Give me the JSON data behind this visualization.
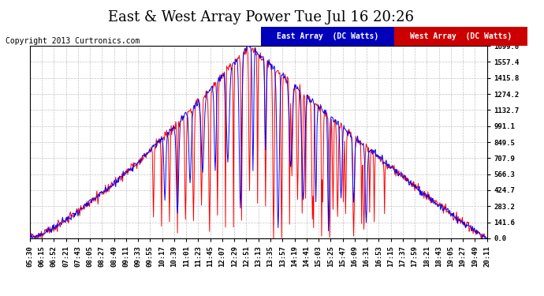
{
  "title": "East & West Array Power Tue Jul 16 20:26",
  "copyright": "Copyright 2013 Curtronics.com",
  "legend_east": "East Array  (DC Watts)",
  "legend_west": "West Array  (DC Watts)",
  "east_color": "#0000ff",
  "west_color": "#ff0000",
  "legend_east_bg": "#0000bb",
  "legend_west_bg": "#cc0000",
  "bg_color": "#ffffff",
  "plot_bg_color": "#ffffff",
  "grid_color": "#aaaaaa",
  "yticks": [
    0.0,
    141.6,
    283.2,
    424.7,
    566.3,
    707.9,
    849.5,
    991.1,
    1132.7,
    1274.2,
    1415.8,
    1557.4,
    1699.0
  ],
  "ymax": 1699.0,
  "ymin": 0.0,
  "title_fontsize": 13,
  "tick_fontsize": 6.5,
  "copyright_fontsize": 7,
  "legend_fontsize": 7,
  "xtick_labels": [
    "05:30",
    "06:15",
    "06:52",
    "07:21",
    "07:43",
    "08:05",
    "08:27",
    "08:49",
    "09:11",
    "09:33",
    "09:55",
    "10:17",
    "10:39",
    "11:01",
    "11:23",
    "11:45",
    "12:07",
    "12:29",
    "12:51",
    "13:13",
    "13:35",
    "13:57",
    "14:19",
    "14:41",
    "15:03",
    "15:25",
    "15:47",
    "16:09",
    "16:31",
    "16:53",
    "17:15",
    "17:37",
    "17:59",
    "18:21",
    "18:43",
    "19:05",
    "19:27",
    "19:49",
    "20:11"
  ]
}
